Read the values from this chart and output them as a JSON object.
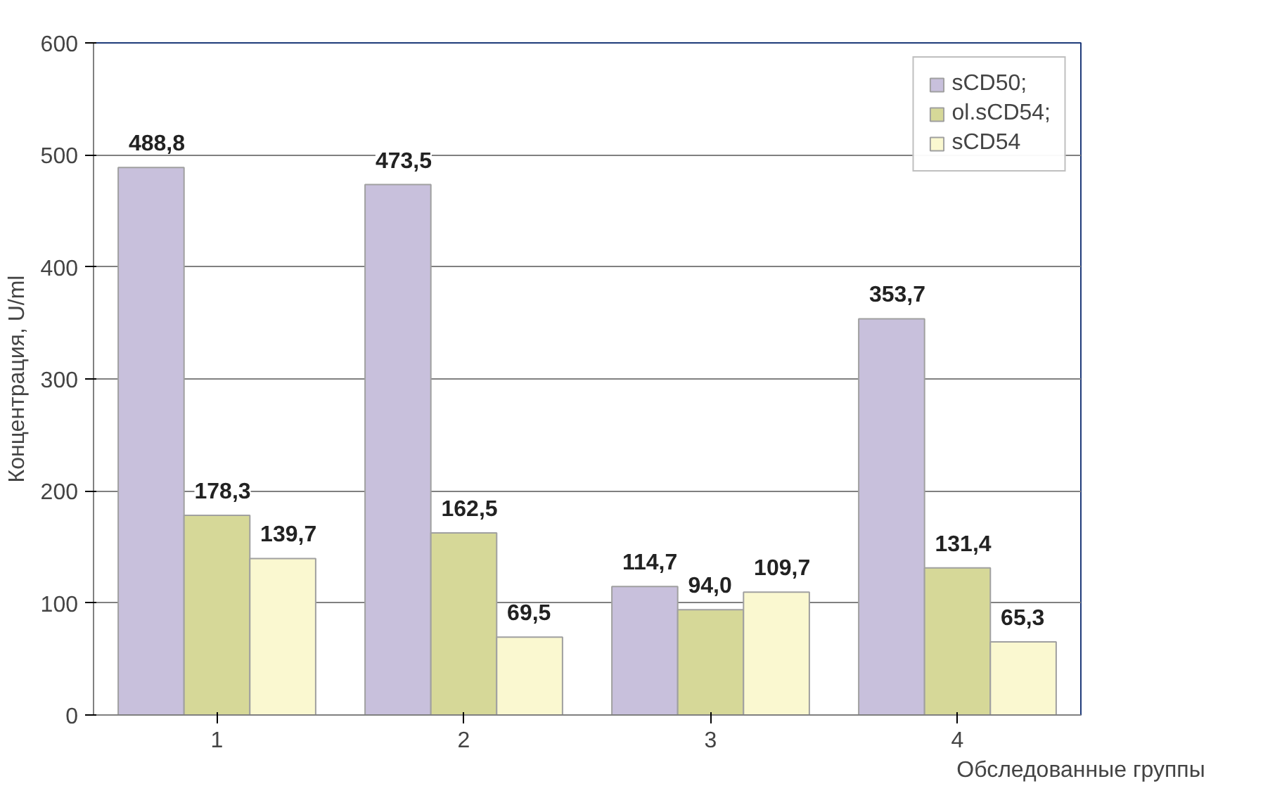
{
  "chart_data": {
    "type": "bar",
    "xlabel": "Обследованные группы",
    "ylabel": "Концентрация, U/ml",
    "categories": [
      "1",
      "2",
      "3",
      "4"
    ],
    "series": [
      {
        "name": "sCD50;",
        "color": "#c8c0dc",
        "values": [
          488.8,
          473.5,
          114.7,
          353.7
        ],
        "value_labels": [
          "488,8",
          "473,5",
          "114,7",
          "353,7"
        ]
      },
      {
        "name": "ol.sCD54;",
        "color": "#d6d898",
        "values": [
          178.3,
          162.5,
          94.0,
          131.4
        ],
        "value_labels": [
          "178,3",
          "162,5",
          "94,0",
          "131,4"
        ]
      },
      {
        "name": "sCD54",
        "color": "#faf8d0",
        "values": [
          139.7,
          69.5,
          109.7,
          65.3
        ],
        "value_labels": [
          "139,7",
          "69,5",
          "109,7",
          "65,3"
        ]
      }
    ],
    "ylim": [
      0,
      600
    ],
    "yticks": [
      0,
      100,
      200,
      300,
      400,
      500,
      600
    ],
    "grid": "y",
    "legend": "top right"
  }
}
